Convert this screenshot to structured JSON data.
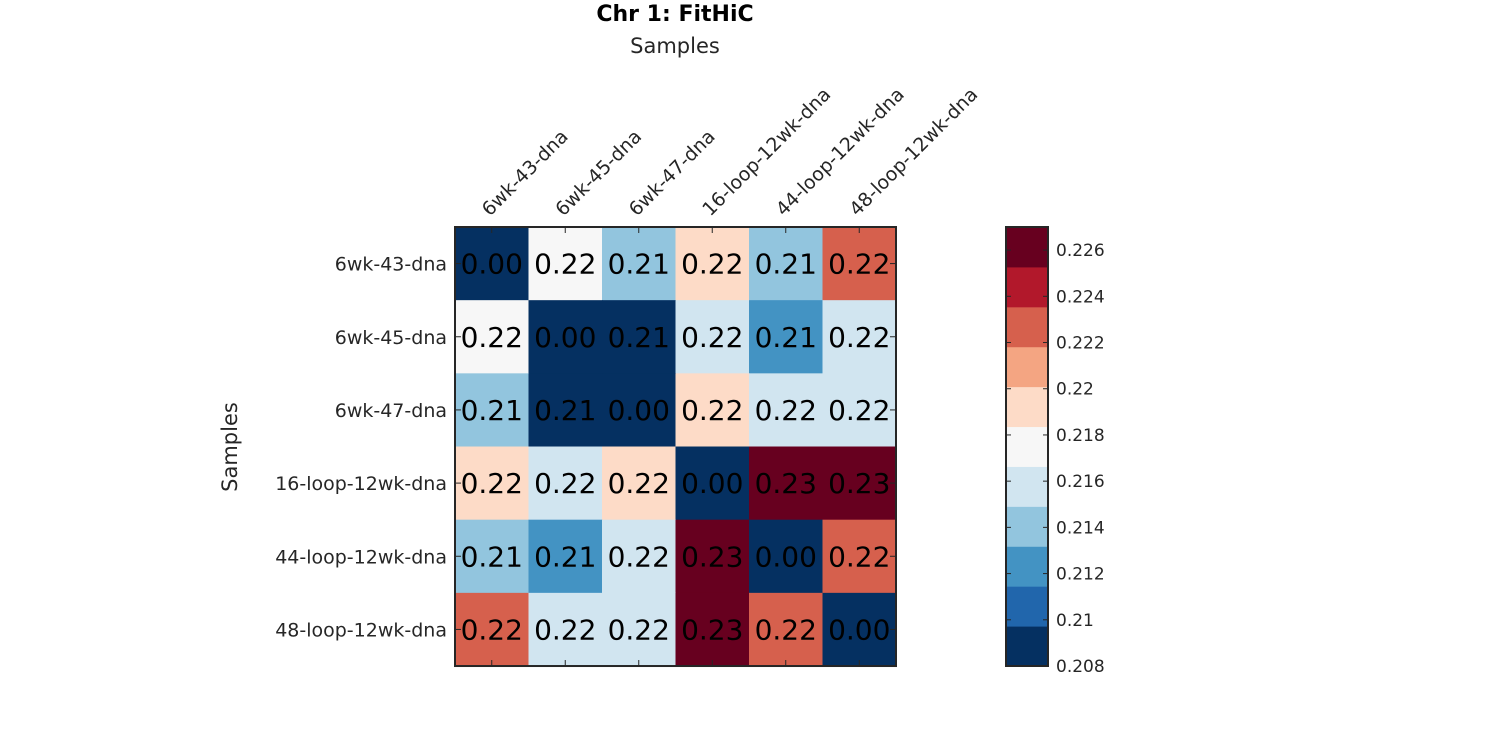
{
  "chart_data": {
    "type": "heatmap",
    "title": "Chr 1: FitHiC",
    "xlabel": "Samples",
    "ylabel": "Samples",
    "rows": [
      "6wk-43-dna",
      "6wk-45-dna",
      "6wk-47-dna",
      "16-loop-12wk-dna",
      "44-loop-12wk-dna",
      "48-loop-12wk-dna"
    ],
    "columns": [
      "6wk-43-dna",
      "6wk-45-dna",
      "6wk-47-dna",
      "16-loop-12wk-dna",
      "44-loop-12wk-dna",
      "48-loop-12wk-dna"
    ],
    "values": [
      [
        0.0,
        0.218,
        0.214,
        0.22,
        0.214,
        0.222
      ],
      [
        0.218,
        0.0,
        0.209,
        0.216,
        0.213,
        0.216
      ],
      [
        0.214,
        0.209,
        0.0,
        0.22,
        0.216,
        0.216
      ],
      [
        0.22,
        0.216,
        0.22,
        0.0,
        0.226,
        0.226
      ],
      [
        0.214,
        0.213,
        0.216,
        0.226,
        0.0,
        0.222
      ],
      [
        0.222,
        0.216,
        0.216,
        0.226,
        0.222,
        0.0
      ]
    ],
    "cell_labels": [
      [
        "0.00",
        "0.22",
        "0.21",
        "0.22",
        "0.21",
        "0.22"
      ],
      [
        "0.22",
        "0.00",
        "0.21",
        "0.22",
        "0.21",
        "0.22"
      ],
      [
        "0.21",
        "0.21",
        "0.00",
        "0.22",
        "0.22",
        "0.22"
      ],
      [
        "0.22",
        "0.22",
        "0.22",
        "0.00",
        "0.23",
        "0.23"
      ],
      [
        "0.21",
        "0.21",
        "0.22",
        "0.23",
        "0.00",
        "0.22"
      ],
      [
        "0.22",
        "0.22",
        "0.22",
        "0.23",
        "0.22",
        "0.00"
      ]
    ],
    "colorbar": {
      "range": [
        0.208,
        0.227
      ],
      "ticks": [
        0.208,
        0.21,
        0.212,
        0.214,
        0.216,
        0.218,
        0.22,
        0.222,
        0.224,
        0.226
      ],
      "tick_labels": [
        "0.208",
        "0.21",
        "0.212",
        "0.214",
        "0.216",
        "0.218",
        "0.22",
        "0.222",
        "0.224",
        "0.226"
      ],
      "colors": [
        "#053061",
        "#2166ac",
        "#4393c3",
        "#92c5de",
        "#d1e5f0",
        "#f7f7f7",
        "#fddbc7",
        "#f4a582",
        "#d6604d",
        "#b2182b",
        "#67001f"
      ],
      "placement": "right"
    }
  }
}
